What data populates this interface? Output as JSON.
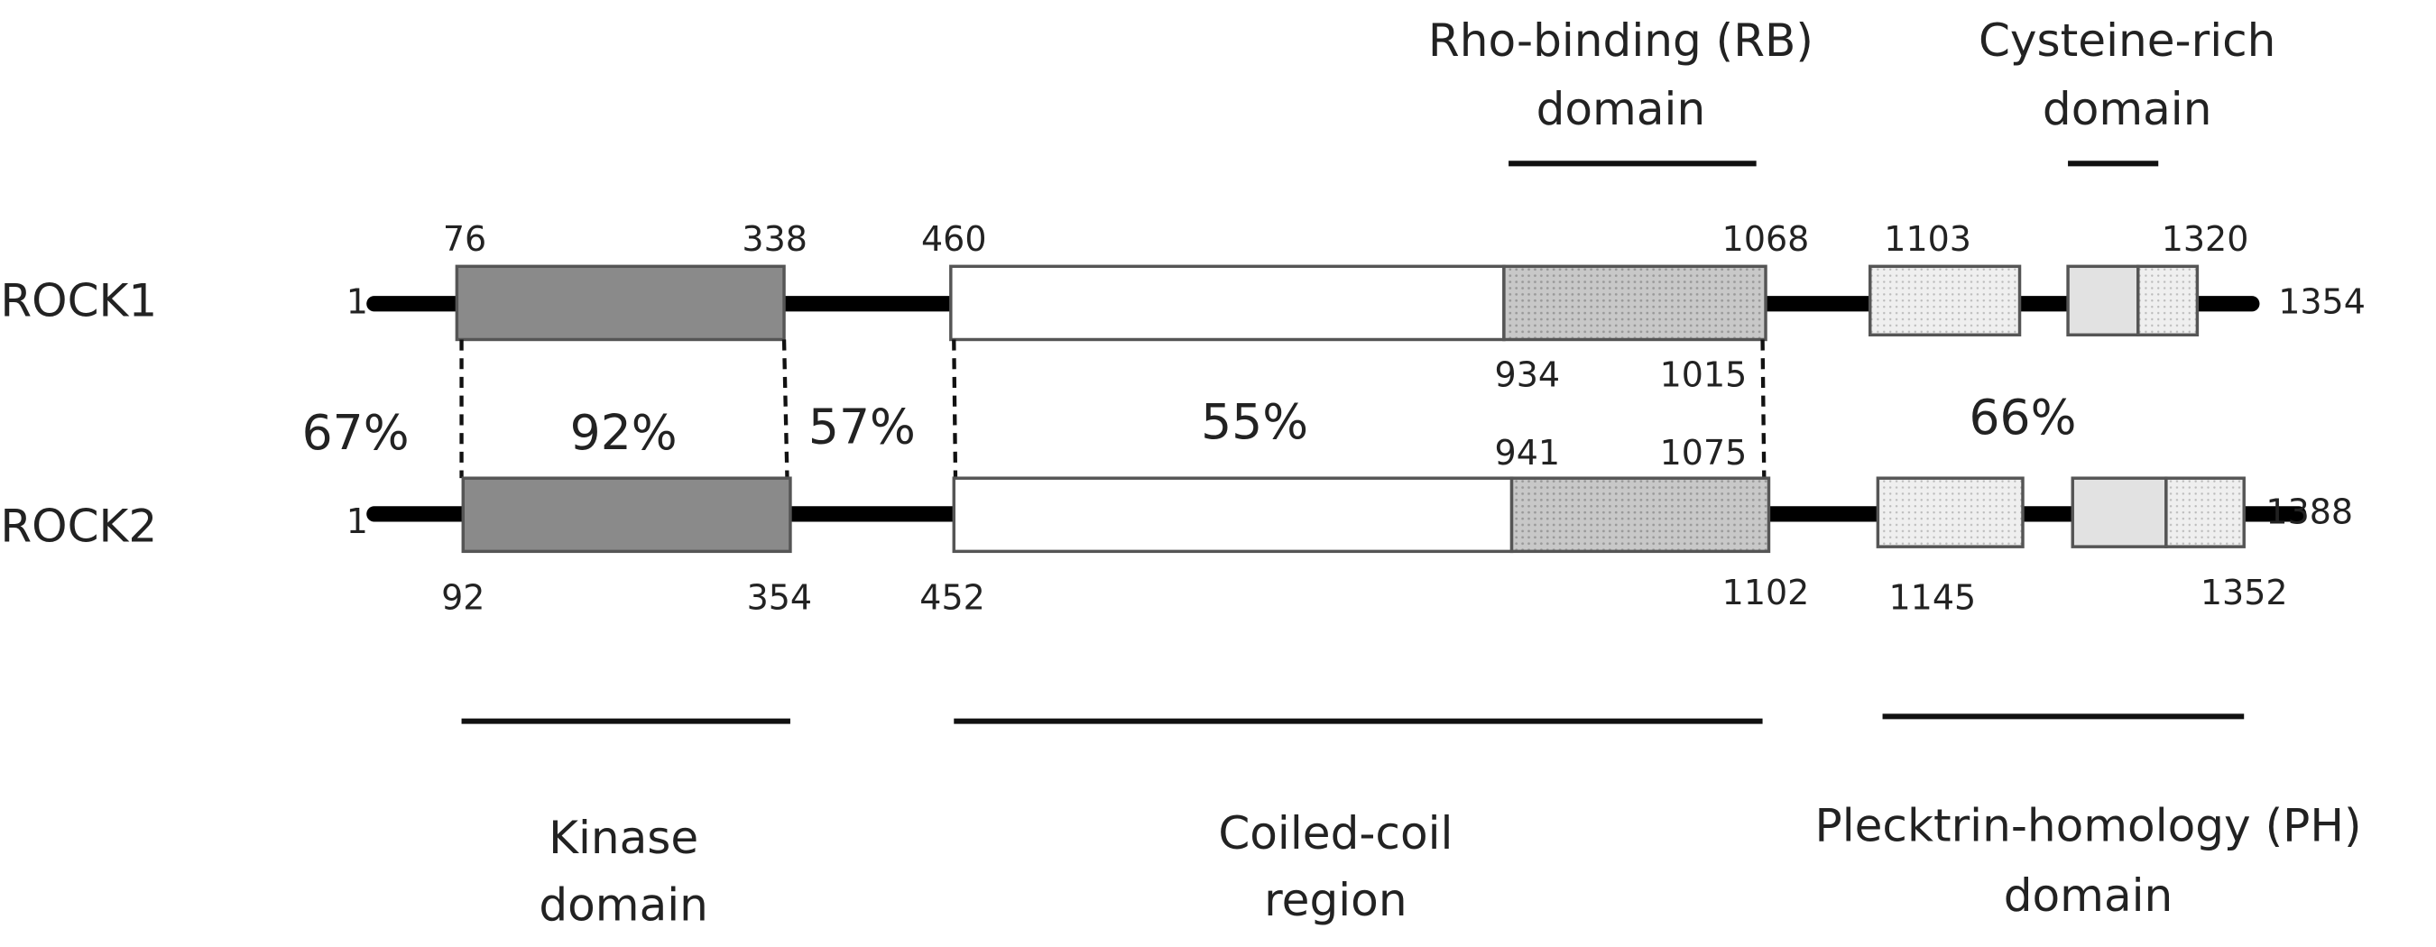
{
  "top_labels": [
    {
      "lines": [
        "Rho-binding (RB)",
        "domain"
      ]
    },
    {
      "lines": [
        "Cysteine-rich",
        "domain"
      ]
    }
  ],
  "proteins": [
    {
      "name": "ROCK1",
      "start": "1",
      "end": "1354",
      "positions": [
        "76",
        "338",
        "460",
        "1068",
        "1103",
        "1320",
        "934",
        "1015"
      ]
    },
    {
      "name": "ROCK2",
      "start": "1",
      "end": "1388",
      "positions": [
        "92",
        "354",
        "452",
        "1102",
        "1145",
        "1352",
        "941",
        "1075"
      ]
    }
  ],
  "similarity": [
    "67%",
    "92%",
    "57%",
    "55%",
    "66%"
  ],
  "bottom_labels": [
    {
      "lines": [
        "Kinase",
        "domain"
      ]
    },
    {
      "lines": [
        "Coiled-coil",
        "region"
      ]
    },
    {
      "lines": [
        "Plecktrin-homology (PH)",
        "domain"
      ]
    }
  ]
}
